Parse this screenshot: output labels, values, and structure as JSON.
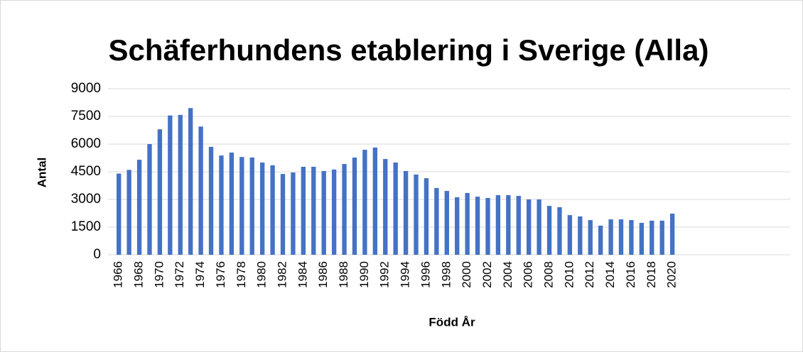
{
  "chart_data": {
    "type": "bar",
    "title": "Schäferhundens etablering i Sverige (Alla)",
    "x_label": "Född År",
    "y_label": "Antal",
    "color": "#4472c4",
    "grid": true,
    "ylim": [
      0,
      9000
    ],
    "yticks": [
      0,
      1500,
      3000,
      4500,
      6000,
      7500,
      9000
    ],
    "categories": [
      "1966",
      null,
      "1968",
      null,
      "1970",
      null,
      "1972",
      null,
      "1974",
      null,
      "1976",
      null,
      "1978",
      null,
      "1980",
      null,
      "1982",
      null,
      "1984",
      null,
      "1986",
      null,
      "1988",
      null,
      "1990",
      null,
      "1992",
      null,
      "1994",
      null,
      "1996",
      null,
      "1998",
      null,
      "2000",
      null,
      "2002",
      null,
      "2004",
      null,
      "2006",
      null,
      "2008",
      null,
      "2010",
      null,
      "2012",
      null,
      "2014",
      null,
      "2016",
      null,
      "2018",
      null,
      "2020",
      null,
      null,
      null,
      null,
      null,
      null,
      null,
      null,
      null,
      null,
      null
    ],
    "values": [
      4400,
      4600,
      5150,
      6000,
      6800,
      7550,
      7580,
      7950,
      6950,
      5850,
      5380,
      5540,
      5300,
      5270,
      5000,
      4850,
      4380,
      4460,
      4770,
      4770,
      4540,
      4620,
      4920,
      5270,
      5690,
      5810,
      5190,
      5000,
      4540,
      4350,
      4150,
      3620,
      3460,
      3120,
      3350,
      3150,
      3080,
      3230,
      3230,
      3190,
      3000,
      3000,
      2650,
      2580,
      2150,
      2080,
      1880,
      1580,
      1920,
      1920,
      1880,
      1730,
      1850,
      1850,
      2230,
      null,
      null,
      null,
      null,
      null,
      null,
      null,
      null,
      null,
      null,
      null
    ]
  }
}
